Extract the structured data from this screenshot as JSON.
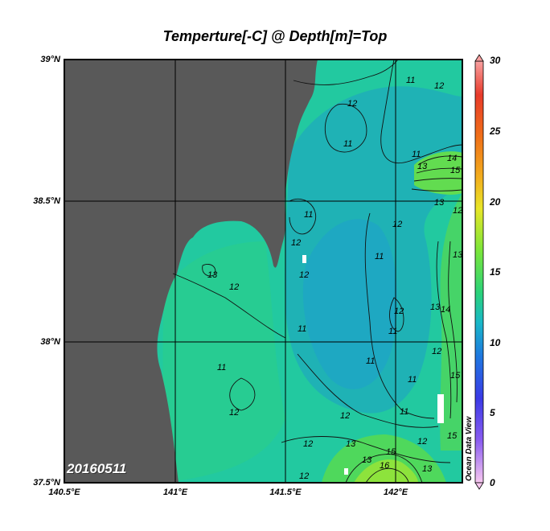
{
  "title": "Temperture[-C] @ Depth[m]=Top",
  "date_label": "20160511",
  "watermark": "Ocean Data View",
  "lat_ticks": [
    "39°N",
    "38.5°N",
    "38°N",
    "37.5°N"
  ],
  "lon_ticks": [
    "140.5°E",
    "141°E",
    "141.5°E",
    "142°E"
  ],
  "colorbar": {
    "ticks": [
      "30",
      "25",
      "20",
      "15",
      "10",
      "5",
      "0"
    ],
    "colors": [
      "#f8c8f0",
      "#8a5cf0",
      "#3a3ae6",
      "#1e78e0",
      "#19b8c8",
      "#2ad27a",
      "#7ae63a",
      "#e8e628",
      "#f2b11e",
      "#f07018",
      "#e83a2a",
      "#f8a0a0"
    ]
  },
  "contour_labels": [
    "11",
    "12",
    "12",
    "11",
    "11",
    "13",
    "14",
    "15",
    "11",
    "13",
    "12",
    "11",
    "13",
    "12",
    "11",
    "11",
    "12",
    "12",
    "11",
    "13",
    "14",
    "12",
    "11",
    "11",
    "11",
    "12",
    "12",
    "12",
    "15",
    "15",
    "12",
    "13",
    "12",
    "13",
    "15",
    "16",
    "13",
    "12",
    "13",
    "12"
  ],
  "colors": {
    "land": "#595959",
    "ocean": "#22c9a0"
  }
}
